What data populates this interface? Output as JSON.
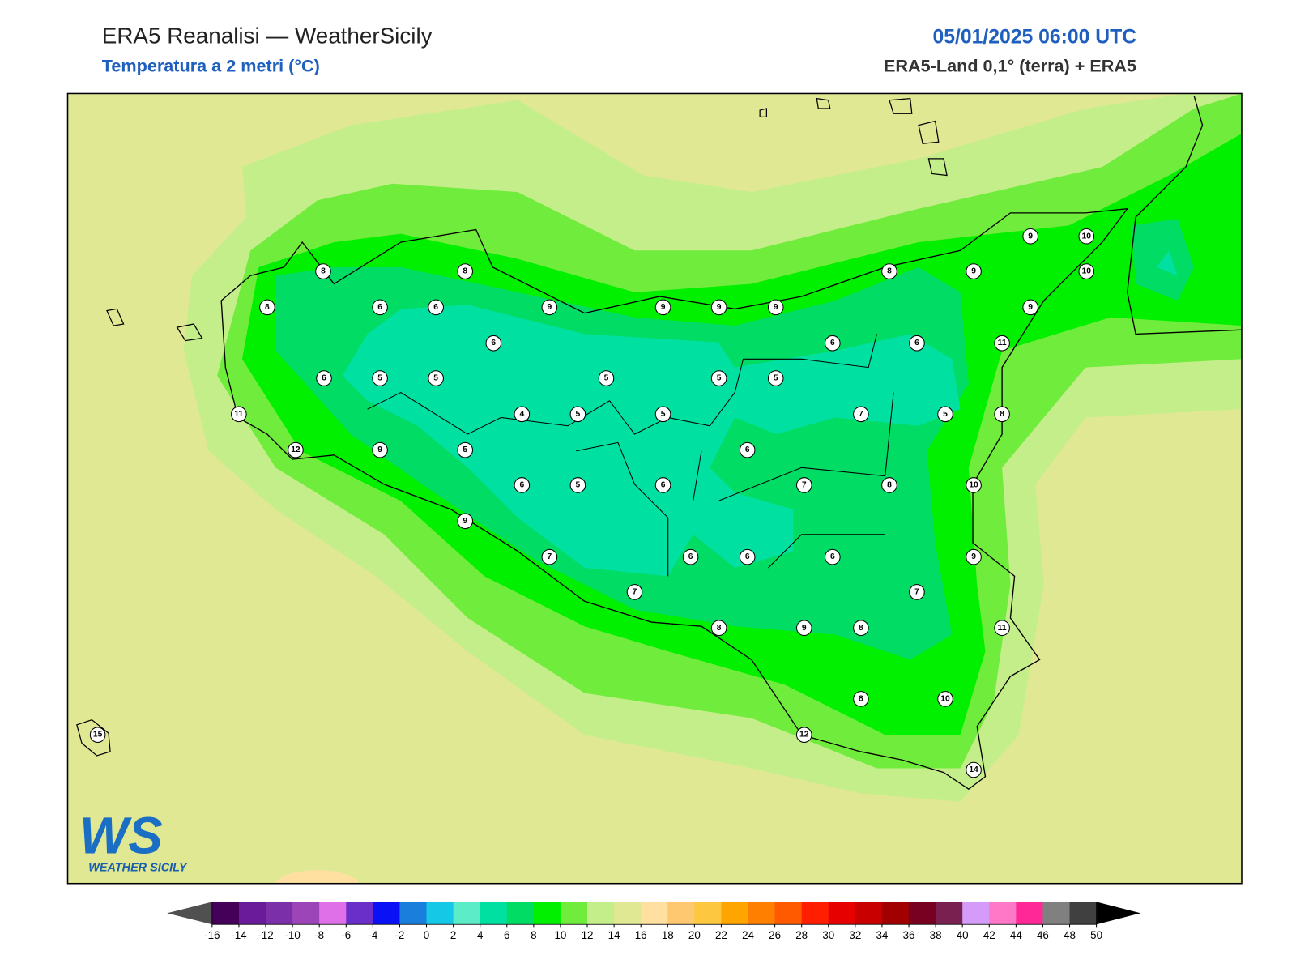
{
  "header": {
    "title": "ERA5 Reanalisi — WeatherSicily",
    "subtitle": "Temperatura a 2 metri (°C)",
    "datetime": "05/01/2025 06:00 UTC",
    "source": "ERA5-Land 0,1° (terra) + ERA5"
  },
  "logo": {
    "mark": "WS",
    "name": "WEATHER SICILY"
  },
  "stations": {
    "values": [
      9,
      10,
      8,
      8,
      8,
      9,
      10,
      8,
      6,
      6,
      9,
      9,
      9,
      9,
      9,
      6,
      6,
      6,
      11,
      6,
      5,
      5,
      5,
      5,
      5,
      11,
      4,
      5,
      5,
      7,
      5,
      8,
      12,
      9,
      5,
      6,
      6,
      5,
      6,
      7,
      8,
      10,
      9,
      7,
      6,
      6,
      6,
      9,
      7,
      7,
      8,
      9,
      8,
      11,
      8,
      10,
      15,
      12,
      14
    ]
  },
  "colorbar": {
    "ticks": [
      -16,
      -14,
      -12,
      -10,
      -8,
      -6,
      -4,
      -2,
      0,
      2,
      4,
      6,
      8,
      10,
      12,
      14,
      16,
      18,
      20,
      22,
      24,
      26,
      28,
      30,
      32,
      34,
      36,
      38,
      40,
      42,
      44,
      46,
      48,
      50
    ],
    "colors": [
      "#45005a",
      "#6a1b9a",
      "#7b2fa8",
      "#9c45b8",
      "#e070e8",
      "#6a2fc8",
      "#0a12f5",
      "#1a7fdc",
      "#14c8e6",
      "#5cedc8",
      "#00e0a0",
      "#00dc64",
      "#00f000",
      "#70ec3c",
      "#c4ee8a",
      "#e0e894",
      "#ffe0a0",
      "#fdc870",
      "#fdc840",
      "#ffa500",
      "#ff8000",
      "#ff5a00",
      "#ff1e00",
      "#e60000",
      "#c80000",
      "#a00000",
      "#780020",
      "#7a2050",
      "#d49cf8",
      "#ff78c8",
      "#ff2896",
      "#808080",
      "#404040"
    ],
    "under_color": "#505050",
    "over_color": "#000000"
  }
}
